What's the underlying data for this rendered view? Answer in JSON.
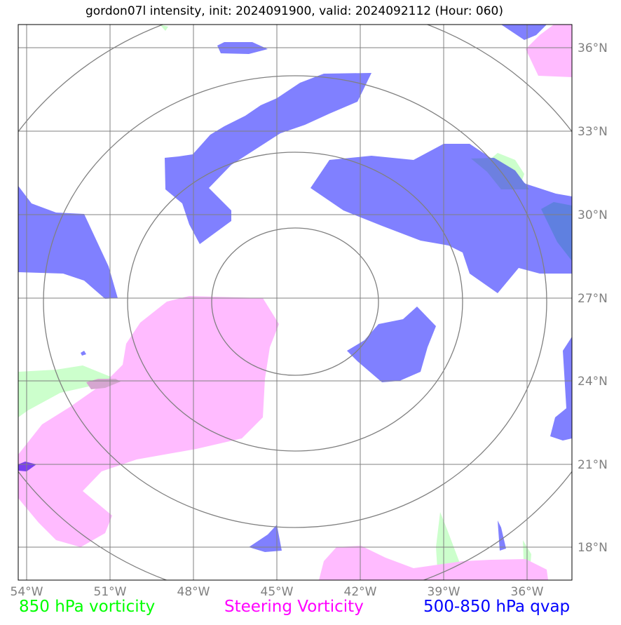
{
  "title": "gordon07l intensity, init: 2024091900, valid: 2024092112 (Hour: 060)",
  "map": {
    "lon_ticks": [
      "54°W",
      "51°W",
      "48°W",
      "45°W",
      "42°W",
      "39°W",
      "36°W"
    ],
    "lat_ticks": [
      "36°N",
      "33°N",
      "30°N",
      "27°N",
      "24°N",
      "21°N",
      "18°N"
    ],
    "lon_range": [
      -54.3,
      -34.5
    ],
    "lat_range": [
      16.8,
      36.8
    ],
    "gridlines": true,
    "range_rings": 4
  },
  "legend": [
    {
      "label": "850 hPa vorticity",
      "color": "#00ff00"
    },
    {
      "label": "Steering Vorticity",
      "color": "#ff00ff"
    },
    {
      "label": "500-850 hPa qvap",
      "color": "#0000ff"
    }
  ],
  "fill_colors": {
    "vorticity_850": "#ccffcc",
    "steering_vorticity": "#ffbbff",
    "qvap": "#8080ff"
  }
}
